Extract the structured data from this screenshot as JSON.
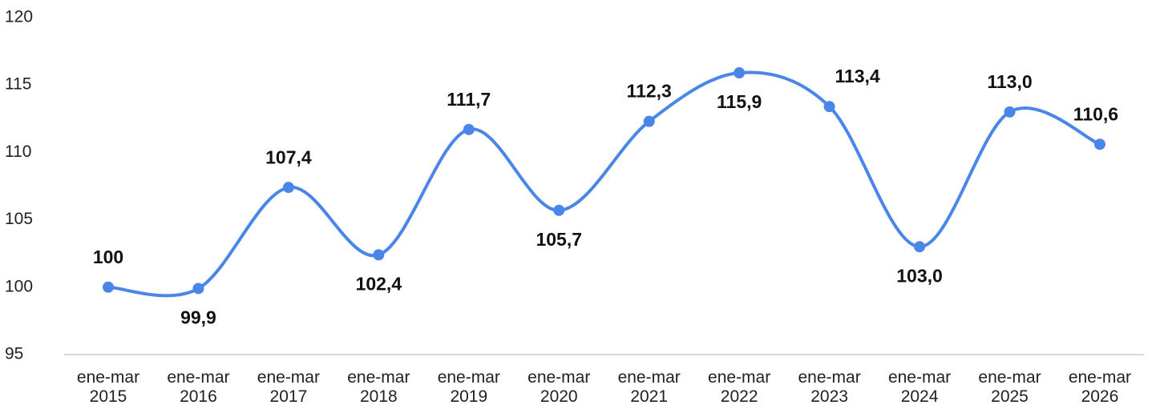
{
  "chart_data": {
    "type": "line",
    "categories": [
      "ene-mar\n2015",
      "ene-mar\n2016",
      "ene-mar\n2017",
      "ene-mar\n2018",
      "ene-mar\n2019",
      "ene-mar\n2020",
      "ene-mar\n2021",
      "ene-mar\n2022",
      "ene-mar\n2023",
      "ene-mar\n2024",
      "ene-mar\n2025",
      "ene-mar\n2026"
    ],
    "series": [
      {
        "color": "#4a86e8",
        "values": [
          100,
          99.9,
          107.4,
          102.4,
          111.7,
          105.7,
          112.3,
          115.9,
          113.4,
          103.0,
          113.0,
          110.6
        ],
        "value_labels": [
          "100",
          "99,9",
          "107,4",
          "102,4",
          "111,7",
          "105,7",
          "112,3",
          "115,9",
          "113,4",
          "103,0",
          "113,0",
          "110,6"
        ]
      }
    ],
    "ylim": [
      95,
      120
    ],
    "yticks": [
      95,
      100,
      105,
      110,
      115,
      120
    ],
    "smooth": true
  }
}
